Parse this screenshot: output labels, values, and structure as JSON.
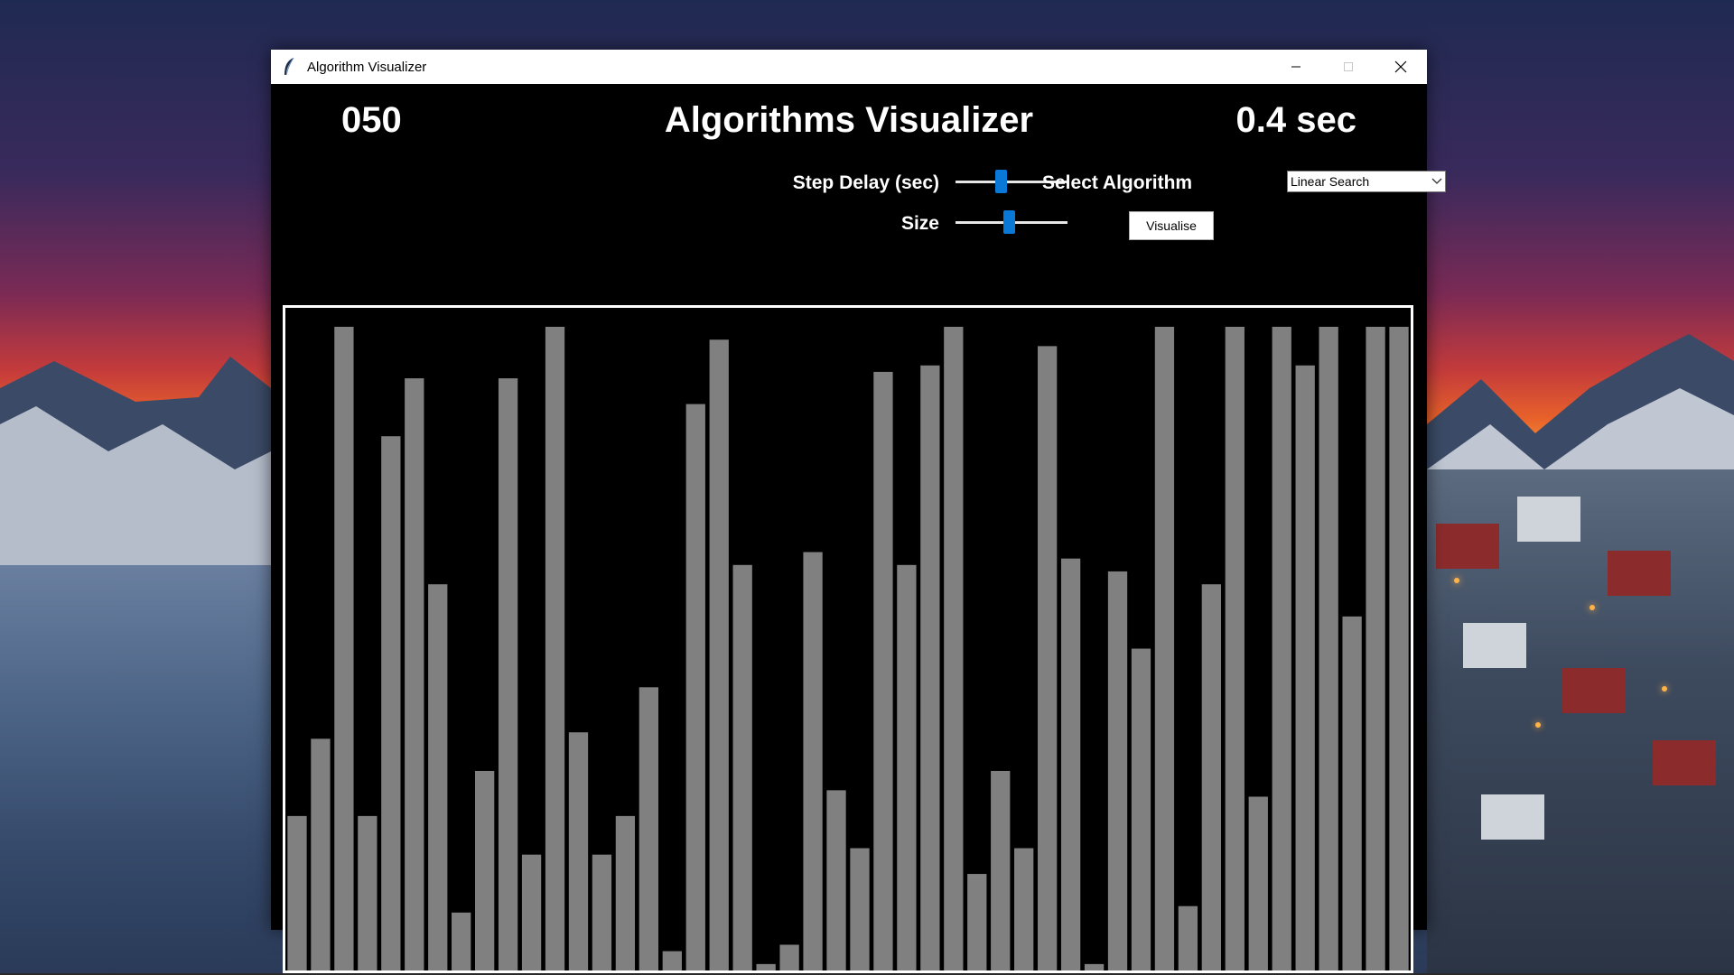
{
  "window": {
    "title": "Algorithm Visualizer",
    "icon": "feather-icon",
    "controls": {
      "minimize_icon": "minimize-icon",
      "maximize_icon": "maximize-icon",
      "close_icon": "close-icon"
    }
  },
  "header": {
    "counter": "050",
    "title": "Algorithms Visualizer",
    "timer": "0.4 sec"
  },
  "controls": {
    "step_delay_label": "Step Delay (sec)",
    "step_delay_level": 0.4,
    "size_label": "Size",
    "size_level": 0.48,
    "algorithm_label": "Select Algorithm",
    "algorithm_value": "Linear Search",
    "visualise_label": "Visualise"
  },
  "colors": {
    "bar": "#808080",
    "background": "#000000",
    "frame": "#ffffff",
    "slider_thumb": "#0a78d7"
  },
  "bars": [
    24,
    36,
    100,
    24,
    83,
    92,
    60,
    9,
    31,
    92,
    18,
    100,
    37,
    18,
    24,
    44,
    3,
    88,
    98,
    63,
    1,
    4,
    65,
    28,
    19,
    93,
    63,
    94,
    100,
    15,
    31,
    19,
    97,
    64,
    1,
    62,
    50,
    100,
    10,
    60,
    100,
    27,
    100,
    94,
    100,
    55,
    100,
    100
  ]
}
